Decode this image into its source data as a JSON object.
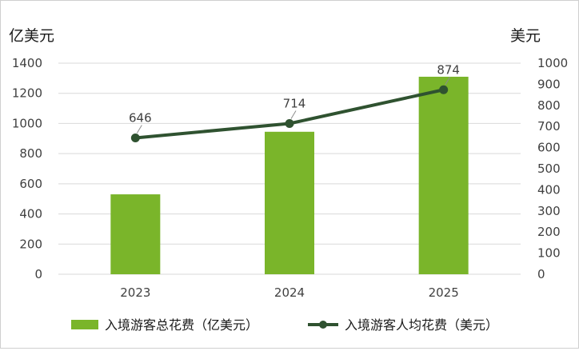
{
  "chart_data": {
    "type": "bar+line",
    "categories": [
      "2023",
      "2024",
      "2025"
    ],
    "series": [
      {
        "name": "入境游客总花费（亿美元）",
        "type": "bar",
        "axis": "left",
        "values": [
          530,
          945,
          1310
        ],
        "color": "#7ab52a"
      },
      {
        "name": "入境游客人均花费（美元）",
        "type": "line",
        "axis": "right",
        "values": [
          646,
          714,
          874
        ],
        "data_labels": [
          "646",
          "714",
          "874"
        ],
        "color": "#2f5230"
      }
    ],
    "left_axis": {
      "label": "亿美元",
      "range": [
        0,
        1400
      ],
      "ticks": [
        "0",
        "200",
        "400",
        "600",
        "800",
        "1000",
        "1200",
        "1400"
      ]
    },
    "right_axis": {
      "label": "美元",
      "range": [
        0,
        1000
      ],
      "ticks": [
        "0",
        "100",
        "200",
        "300",
        "400",
        "500",
        "600",
        "700",
        "800",
        "900",
        "1000"
      ]
    },
    "grid": true,
    "legend_position": "bottom"
  }
}
